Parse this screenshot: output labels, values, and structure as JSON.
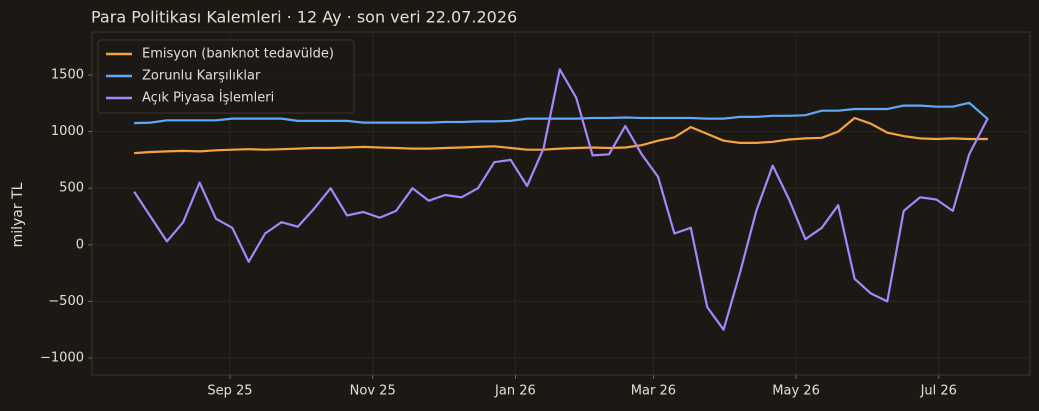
{
  "chart_data": {
    "type": "line",
    "title": "Para Politikası Kalemleri · 12 Ay · son veri 22.07.2026",
    "y_label": "milyar TL",
    "x": [
      "2025-07-22",
      "2025-07-29",
      "2025-08-05",
      "2025-08-12",
      "2025-08-19",
      "2025-08-26",
      "2025-09-02",
      "2025-09-09",
      "2025-09-16",
      "2025-09-23",
      "2025-09-30",
      "2025-10-07",
      "2025-10-14",
      "2025-10-21",
      "2025-10-28",
      "2025-11-04",
      "2025-11-11",
      "2025-11-18",
      "2025-11-25",
      "2025-12-02",
      "2025-12-09",
      "2025-12-16",
      "2025-12-23",
      "2025-12-30",
      "2026-01-06",
      "2026-01-13",
      "2026-01-20",
      "2026-01-27",
      "2026-02-03",
      "2026-02-10",
      "2026-02-17",
      "2026-02-24",
      "2026-03-03",
      "2026-03-10",
      "2026-03-17",
      "2026-03-24",
      "2026-03-31",
      "2026-04-07",
      "2026-04-14",
      "2026-04-21",
      "2026-04-28",
      "2026-05-05",
      "2026-05-12",
      "2026-05-19",
      "2026-05-26",
      "2026-06-02",
      "2026-06-09",
      "2026-06-16",
      "2026-06-23",
      "2026-06-30",
      "2026-07-07",
      "2026-07-14",
      "2026-07-22"
    ],
    "series": [
      {
        "name": "Emisyon (banknot tedavülde)",
        "color": "#f4a340",
        "values": [
          810,
          820,
          825,
          830,
          825,
          835,
          840,
          845,
          840,
          845,
          850,
          855,
          855,
          860,
          865,
          860,
          855,
          850,
          850,
          855,
          860,
          865,
          870,
          855,
          840,
          840,
          850,
          855,
          860,
          855,
          860,
          880,
          920,
          950,
          1040,
          980,
          920,
          900,
          900,
          910,
          930,
          940,
          945,
          1000,
          1120,
          1070,
          990,
          960,
          940,
          935,
          940,
          935,
          935
        ]
      },
      {
        "name": "Zorunlu Karşılıklar",
        "color": "#5ea8f6",
        "values": [
          1075,
          1080,
          1100,
          1100,
          1100,
          1100,
          1115,
          1115,
          1115,
          1115,
          1095,
          1095,
          1095,
          1095,
          1080,
          1080,
          1080,
          1080,
          1080,
          1085,
          1085,
          1090,
          1090,
          1095,
          1115,
          1115,
          1115,
          1115,
          1120,
          1120,
          1125,
          1120,
          1120,
          1120,
          1120,
          1115,
          1115,
          1130,
          1130,
          1140,
          1140,
          1145,
          1185,
          1185,
          1200,
          1200,
          1200,
          1230,
          1230,
          1220,
          1220,
          1255,
          1110
        ]
      },
      {
        "name": "Açık Piyasa İşlemleri",
        "color": "#a686f8",
        "values": [
          470,
          250,
          30,
          200,
          550,
          230,
          150,
          -150,
          100,
          200,
          160,
          320,
          500,
          260,
          290,
          240,
          300,
          500,
          390,
          440,
          420,
          500,
          730,
          750,
          520,
          850,
          1550,
          1300,
          790,
          800,
          1050,
          800,
          600,
          100,
          150,
          -550,
          -750,
          -250,
          300,
          700,
          400,
          50,
          150,
          350,
          -300,
          -430,
          -500,
          300,
          420,
          400,
          300,
          800,
          1120
        ]
      }
    ],
    "xlim": [
      "2025-07-04",
      "2026-08-09"
    ],
    "xticks": [
      {
        "value": "2025-09-01",
        "label": "Sep 25"
      },
      {
        "value": "2025-11-01",
        "label": "Nov 25"
      },
      {
        "value": "2026-01-01",
        "label": "Jan 26"
      },
      {
        "value": "2026-03-01",
        "label": "Mar 26"
      },
      {
        "value": "2026-05-01",
        "label": "May 26"
      },
      {
        "value": "2026-07-01",
        "label": "Jul 26"
      }
    ],
    "ylim": [
      -1150,
      1880
    ],
    "yticks": [
      {
        "value": -1000,
        "label": "−1000"
      },
      {
        "value": -500,
        "label": "−500"
      },
      0,
      500,
      1000,
      1500
    ],
    "grid": true,
    "legend": "upper left"
  }
}
